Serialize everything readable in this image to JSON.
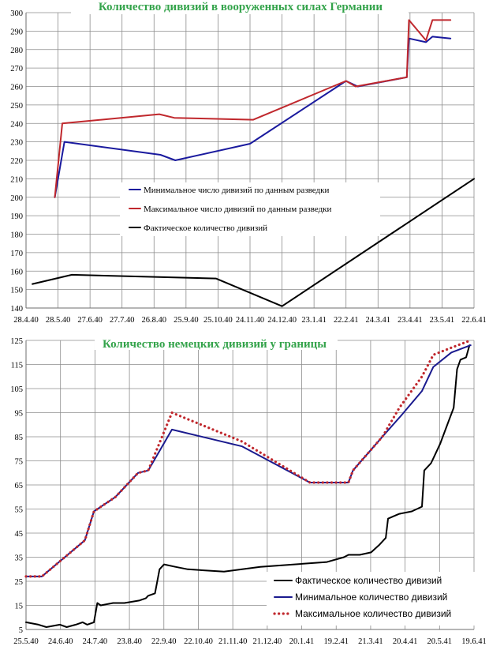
{
  "chart_data": [
    {
      "type": "line",
      "title": "Количество дивизий в вооруженных силах Германии",
      "ylim": [
        140,
        300
      ],
      "yticks": [
        140,
        150,
        160,
        170,
        180,
        190,
        200,
        210,
        220,
        230,
        240,
        250,
        260,
        270,
        280,
        290,
        300
      ],
      "xlim": [
        "1940-04-28",
        "1941-06-22"
      ],
      "xtick_labels": [
        "28.4.40",
        "28.5.40",
        "27.6.40",
        "27.7.40",
        "26.8.40",
        "25.9.40",
        "25.10.40",
        "24.11.40",
        "24.12.40",
        "23.1.41",
        "22.2.41",
        "24.3.41",
        "23.4.41",
        "23.5.41",
        "22.6.41"
      ],
      "grid": true,
      "legend_position": "center",
      "series": [
        {
          "name": "Минимальное число дивизий по данным разведки",
          "color": "#1a1a9e",
          "style": "solid",
          "points": [
            [
              "1940-05-25",
              200
            ],
            [
              "1940-06-03",
              230
            ],
            [
              "1940-09-01",
              223
            ],
            [
              "1940-09-15",
              220
            ],
            [
              "1940-11-24",
              229
            ],
            [
              "1941-02-22",
              263
            ],
            [
              "1941-03-05",
              260
            ],
            [
              "1941-04-20",
              265
            ],
            [
              "1941-04-22",
              286
            ],
            [
              "1941-05-08",
              284
            ],
            [
              "1941-05-14",
              287
            ],
            [
              "1941-05-31",
              286
            ]
          ]
        },
        {
          "name": "Максимальное число дивизий по данным разведки",
          "color": "#c0282d",
          "style": "solid",
          "points": [
            [
              "1940-05-25",
              200
            ],
            [
              "1940-06-01",
              240
            ],
            [
              "1940-08-31",
              245
            ],
            [
              "1940-09-14",
              243
            ],
            [
              "1940-11-27",
              242
            ],
            [
              "1941-02-22",
              263
            ],
            [
              "1941-03-03",
              260
            ],
            [
              "1941-04-20",
              265
            ],
            [
              "1941-04-22",
              296
            ],
            [
              "1941-05-08",
              285
            ],
            [
              "1941-05-14",
              296
            ],
            [
              "1941-05-31",
              296
            ]
          ]
        },
        {
          "name": "Фактическое количество дивизий",
          "color": "#000000",
          "style": "solid",
          "points": [
            [
              "1940-05-04",
              153
            ],
            [
              "1940-06-10",
              158
            ],
            [
              "1940-10-23",
              156
            ],
            [
              "1940-12-24",
              141
            ],
            [
              "1941-06-22",
              210
            ]
          ]
        }
      ]
    },
    {
      "type": "line",
      "title": "Количество немецких дивизий у границы",
      "ylim": [
        5,
        125
      ],
      "yticks": [
        5,
        15,
        25,
        35,
        45,
        55,
        65,
        75,
        85,
        95,
        105,
        115,
        125
      ],
      "xlim": [
        "1940-05-25",
        "1941-06-25"
      ],
      "xtick_labels": [
        "25.5.40",
        "24.6.40",
        "24.7.40",
        "23.8.40",
        "22.9.40",
        "22.10.40",
        "21.11.40",
        "21.12.40",
        "20.1.41",
        "19.2.41",
        "21.3.41",
        "20.4.41",
        "20.5.41",
        "19.6.41"
      ],
      "grid": true,
      "legend_position": "bottom-right",
      "series": [
        {
          "name": "Фактическое количество дивизий",
          "color": "#000000",
          "style": "solid",
          "points": [
            [
              "1940-05-25",
              8
            ],
            [
              "1940-06-05",
              7
            ],
            [
              "1940-06-12",
              6
            ],
            [
              "1940-06-24",
              7
            ],
            [
              "1940-06-30",
              6
            ],
            [
              "1940-07-08",
              7
            ],
            [
              "1940-07-14",
              8
            ],
            [
              "1940-07-18",
              7
            ],
            [
              "1940-07-24",
              8
            ],
            [
              "1940-07-27",
              16
            ],
            [
              "1940-07-30",
              15
            ],
            [
              "1940-08-10",
              16
            ],
            [
              "1940-08-20",
              16
            ],
            [
              "1940-09-02",
              17
            ],
            [
              "1940-09-08",
              18
            ],
            [
              "1940-09-10",
              19
            ],
            [
              "1940-09-16",
              20
            ],
            [
              "1940-09-20",
              30
            ],
            [
              "1940-09-24",
              32
            ],
            [
              "1940-10-04",
              31
            ],
            [
              "1940-10-15",
              30
            ],
            [
              "1940-11-16",
              29
            ],
            [
              "1940-12-18",
              31
            ],
            [
              "1941-02-15",
              33
            ],
            [
              "1941-03-02",
              35
            ],
            [
              "1941-03-06",
              36
            ],
            [
              "1941-03-16",
              36
            ],
            [
              "1941-03-26",
              37
            ],
            [
              "1941-04-02",
              40
            ],
            [
              "1941-04-06",
              42
            ],
            [
              "1941-04-08",
              43
            ],
            [
              "1941-04-10",
              51
            ],
            [
              "1941-04-15",
              52
            ],
            [
              "1941-04-20",
              53
            ],
            [
              "1941-05-01",
              54
            ],
            [
              "1941-05-10",
              56
            ],
            [
              "1941-05-12",
              71
            ],
            [
              "1941-05-18",
              74
            ],
            [
              "1941-05-22",
              78
            ],
            [
              "1941-05-26",
              82
            ],
            [
              "1941-05-30",
              87
            ],
            [
              "1941-06-03",
              92
            ],
            [
              "1941-06-07",
              97
            ],
            [
              "1941-06-10",
              113
            ],
            [
              "1941-06-13",
              117
            ],
            [
              "1941-06-18",
              118
            ],
            [
              "1941-06-21",
              123
            ]
          ]
        },
        {
          "name": "Минимальное количество дивизий",
          "color": "#1a1a8e",
          "style": "solid",
          "points": [
            [
              "1940-05-25",
              27
            ],
            [
              "1940-06-08",
              27
            ],
            [
              "1940-07-16",
              42
            ],
            [
              "1940-07-24",
              54
            ],
            [
              "1940-08-12",
              60
            ],
            [
              "1940-09-01",
              70
            ],
            [
              "1940-09-10",
              71
            ],
            [
              "1940-10-01",
              88
            ],
            [
              "1940-12-02",
              81
            ],
            [
              "1941-01-31",
              66
            ],
            [
              "1941-03-06",
              66
            ],
            [
              "1941-03-10",
              71
            ],
            [
              "1941-04-05",
              85
            ],
            [
              "1941-04-22",
              94
            ],
            [
              "1941-05-10",
              104
            ],
            [
              "1941-05-20",
              114
            ],
            [
              "1941-06-05",
              120
            ],
            [
              "1941-06-22",
              123
            ]
          ]
        },
        {
          "name": "Максимальное количество дивизий",
          "color": "#c0282d",
          "style": "dotted",
          "points": [
            [
              "1940-05-25",
              27
            ],
            [
              "1940-06-08",
              27
            ],
            [
              "1940-07-16",
              42
            ],
            [
              "1940-07-24",
              54
            ],
            [
              "1940-08-12",
              60
            ],
            [
              "1940-09-01",
              70
            ],
            [
              "1940-09-10",
              71
            ],
            [
              "1940-10-01",
              95
            ],
            [
              "1940-12-02",
              83
            ],
            [
              "1941-01-31",
              66
            ],
            [
              "1941-03-06",
              66
            ],
            [
              "1941-03-10",
              71
            ],
            [
              "1941-04-05",
              85
            ],
            [
              "1941-04-20",
              97
            ],
            [
              "1941-05-10",
              110
            ],
            [
              "1941-05-20",
              119
            ],
            [
              "1941-06-05",
              122
            ],
            [
              "1941-06-22",
              125
            ]
          ]
        }
      ]
    }
  ]
}
